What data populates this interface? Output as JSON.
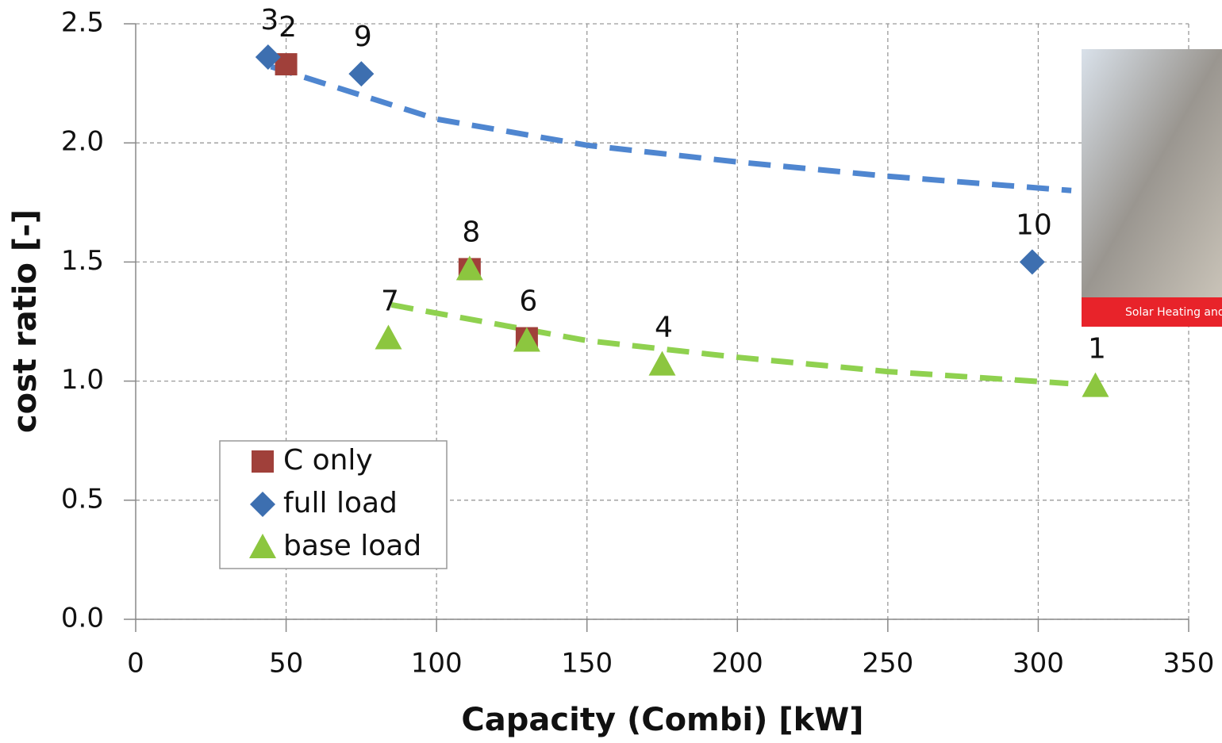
{
  "chart_data": {
    "type": "scatter",
    "xlabel": "Capacity (Combi) [kW]",
    "ylabel": "cost ratio [-]",
    "xlim": [
      0,
      350
    ],
    "ylim": [
      0,
      2.5
    ],
    "xticks": [
      0,
      50,
      100,
      150,
      200,
      250,
      300,
      350
    ],
    "yticks": [
      {
        "value": 0,
        "label": "0.0"
      },
      0.5,
      {
        "value": 1,
        "label": "1.0"
      },
      1.5,
      {
        "value": 2,
        "label": "2.0"
      },
      2.5
    ],
    "grid": true,
    "legend_position": "lower left",
    "series": [
      {
        "name": "C only",
        "color": "#a0403a",
        "marker": "square",
        "x": [
          50,
          111,
          130
        ],
        "values": [
          2.33,
          1.47,
          1.18
        ],
        "point_labels": [
          "2",
          "8",
          "6"
        ]
      },
      {
        "name": "full load",
        "color": "#3d6fb0",
        "marker": "diamond",
        "x": [
          44,
          75,
          298
        ],
        "values": [
          2.36,
          2.29,
          1.5
        ],
        "point_labels": [
          "3",
          "9",
          "10"
        ]
      },
      {
        "name": "base load",
        "color": "#8cc63f",
        "marker": "triangle",
        "x": [
          84,
          111,
          130,
          175,
          319
        ],
        "values": [
          1.18,
          1.47,
          1.17,
          1.07,
          0.98
        ],
        "point_labels": [
          "7",
          null,
          null,
          "4",
          "1"
        ]
      }
    ],
    "trendlines": [
      {
        "color": "#4f86d0",
        "x": [
          45,
          100,
          150,
          200,
          250,
          311
        ],
        "y": [
          2.32,
          2.1,
          1.99,
          1.92,
          1.86,
          1.8
        ]
      },
      {
        "color": "#8fd14f",
        "x": [
          85,
          150,
          200,
          250,
          310
        ],
        "y": [
          1.32,
          1.17,
          1.1,
          1.04,
          0.99
        ]
      }
    ]
  },
  "inset": {
    "caption": "Solar Heating and"
  }
}
